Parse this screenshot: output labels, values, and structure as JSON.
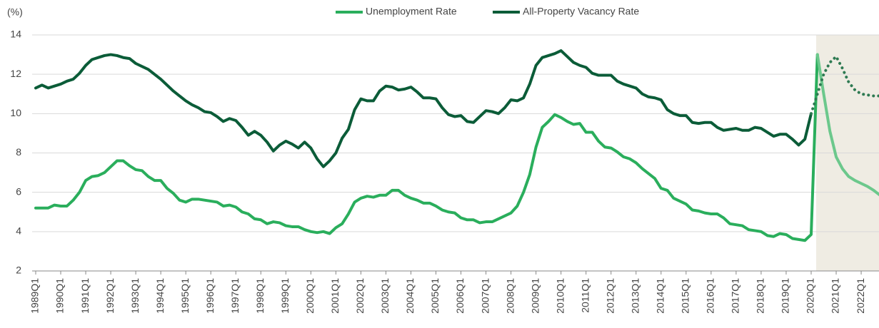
{
  "chart_data": {
    "type": "line",
    "y_label": "(%)",
    "categories": [
      "1989Q1",
      null,
      null,
      null,
      "1990Q1",
      null,
      null,
      null,
      "1991Q1",
      null,
      null,
      null,
      "1992Q1",
      null,
      null,
      null,
      "1993Q1",
      null,
      null,
      null,
      "1994Q1",
      null,
      null,
      null,
      "1995Q1",
      null,
      null,
      null,
      "1996Q1",
      null,
      null,
      null,
      "1997Q1",
      null,
      null,
      null,
      "1998Q1",
      null,
      null,
      null,
      "1999Q1",
      null,
      null,
      null,
      "2000Q1",
      null,
      null,
      null,
      "2001Q1",
      null,
      null,
      null,
      "2002Q1",
      null,
      null,
      null,
      "2003Q1",
      null,
      null,
      null,
      "2004Q1",
      null,
      null,
      null,
      "2005Q1",
      null,
      null,
      null,
      "2006Q1",
      null,
      null,
      null,
      "2007Q1",
      null,
      null,
      null,
      "2008Q1",
      null,
      null,
      null,
      "2009Q1",
      null,
      null,
      null,
      "2010Q1",
      null,
      null,
      null,
      "2011Q1",
      null,
      null,
      null,
      "2012Q1",
      null,
      null,
      null,
      "2013Q1",
      null,
      null,
      null,
      "2014Q1",
      null,
      null,
      null,
      "2015Q1",
      null,
      null,
      null,
      "2016Q1",
      null,
      null,
      null,
      "2017Q1",
      null,
      null,
      null,
      "2018Q1",
      null,
      null,
      null,
      "2019Q1",
      null,
      null,
      null,
      "2020Q1",
      null,
      null,
      null,
      "2021Q1",
      null,
      null,
      null,
      "2022Q1",
      null,
      null,
      null
    ],
    "series": [
      {
        "name": "Unemployment Rate",
        "color": "#2aae5c",
        "forecast_color": "#6cc88c",
        "forecast_style": "solid",
        "values": [
          5.2,
          5.2,
          5.2,
          5.35,
          5.3,
          5.3,
          5.6,
          6.0,
          6.6,
          6.8,
          6.85,
          7.0,
          7.3,
          7.6,
          7.6,
          7.35,
          7.15,
          7.1,
          6.8,
          6.6,
          6.6,
          6.2,
          5.95,
          5.6,
          5.5,
          5.65,
          5.65,
          5.6,
          5.55,
          5.5,
          5.3,
          5.35,
          5.25,
          5.0,
          4.9,
          4.65,
          4.6,
          4.4,
          4.5,
          4.45,
          4.3,
          4.25,
          4.25,
          4.1,
          4.0,
          3.95,
          4.0,
          3.9,
          4.2,
          4.4,
          4.9,
          5.5,
          5.7,
          5.8,
          5.75,
          5.85,
          5.85,
          6.1,
          6.1,
          5.85,
          5.7,
          5.6,
          5.45,
          5.45,
          5.3,
          5.1,
          5.0,
          4.95,
          4.7,
          4.6,
          4.6,
          4.45,
          4.5,
          4.5,
          4.65,
          4.8,
          4.95,
          5.3,
          6.0,
          6.9,
          8.3,
          9.3,
          9.6,
          9.95,
          9.8,
          9.6,
          9.45,
          9.5,
          9.05,
          9.05,
          8.6,
          8.3,
          8.25,
          8.05,
          7.8,
          7.7,
          7.5,
          7.2,
          6.95,
          6.7,
          6.2,
          6.1,
          5.7,
          5.55,
          5.4,
          5.1,
          5.05,
          4.95,
          4.9,
          4.9,
          4.7,
          4.4,
          4.35,
          4.3,
          4.1,
          4.05,
          4.0,
          3.8,
          3.75,
          3.9,
          3.85,
          3.65,
          3.6,
          3.55,
          3.85,
          13.0,
          11.0,
          9.1,
          7.8,
          7.2,
          6.8,
          6.6,
          6.45,
          6.3,
          6.1,
          5.85
        ]
      },
      {
        "name": "All-Property Vacancy Rate",
        "color": "#0b5c38",
        "forecast_color": "#2e7a52",
        "forecast_style": "dotted",
        "values": [
          11.3,
          11.45,
          11.3,
          11.4,
          11.5,
          11.65,
          11.75,
          12.05,
          12.45,
          12.75,
          12.85,
          12.95,
          13.0,
          12.95,
          12.85,
          12.8,
          12.55,
          12.4,
          12.25,
          12.0,
          11.75,
          11.45,
          11.15,
          10.9,
          10.65,
          10.45,
          10.3,
          10.1,
          10.05,
          9.85,
          9.6,
          9.75,
          9.65,
          9.3,
          8.9,
          9.1,
          8.9,
          8.55,
          8.1,
          8.4,
          8.6,
          8.45,
          8.25,
          8.55,
          8.25,
          7.7,
          7.3,
          7.6,
          8.0,
          8.75,
          9.2,
          10.2,
          10.75,
          10.65,
          10.65,
          11.15,
          11.4,
          11.35,
          11.2,
          11.25,
          11.35,
          11.1,
          10.8,
          10.8,
          10.75,
          10.3,
          9.95,
          9.85,
          9.9,
          9.6,
          9.55,
          9.85,
          10.15,
          10.1,
          10.0,
          10.3,
          10.7,
          10.65,
          10.8,
          11.5,
          12.45,
          12.85,
          12.95,
          13.05,
          13.2,
          12.9,
          12.6,
          12.45,
          12.35,
          12.05,
          11.95,
          11.95,
          11.95,
          11.65,
          11.5,
          11.4,
          11.3,
          11.0,
          10.85,
          10.8,
          10.7,
          10.2,
          10.0,
          9.9,
          9.9,
          9.55,
          9.5,
          9.55,
          9.55,
          9.3,
          9.15,
          9.2,
          9.25,
          9.15,
          9.15,
          9.3,
          9.25,
          9.05,
          8.85,
          8.95,
          8.95,
          8.7,
          8.4,
          8.7,
          10.0,
          11.0,
          12.0,
          12.6,
          12.9,
          12.3,
          11.6,
          11.2,
          11.0,
          10.95,
          10.9,
          10.9
        ]
      }
    ],
    "forecast_start": 124,
    "forecast_shade": "#efece3",
    "ylim": [
      2,
      14
    ],
    "yticks": [
      2,
      4,
      6,
      8,
      10,
      12,
      14
    ],
    "grid": true,
    "legend": "top"
  }
}
